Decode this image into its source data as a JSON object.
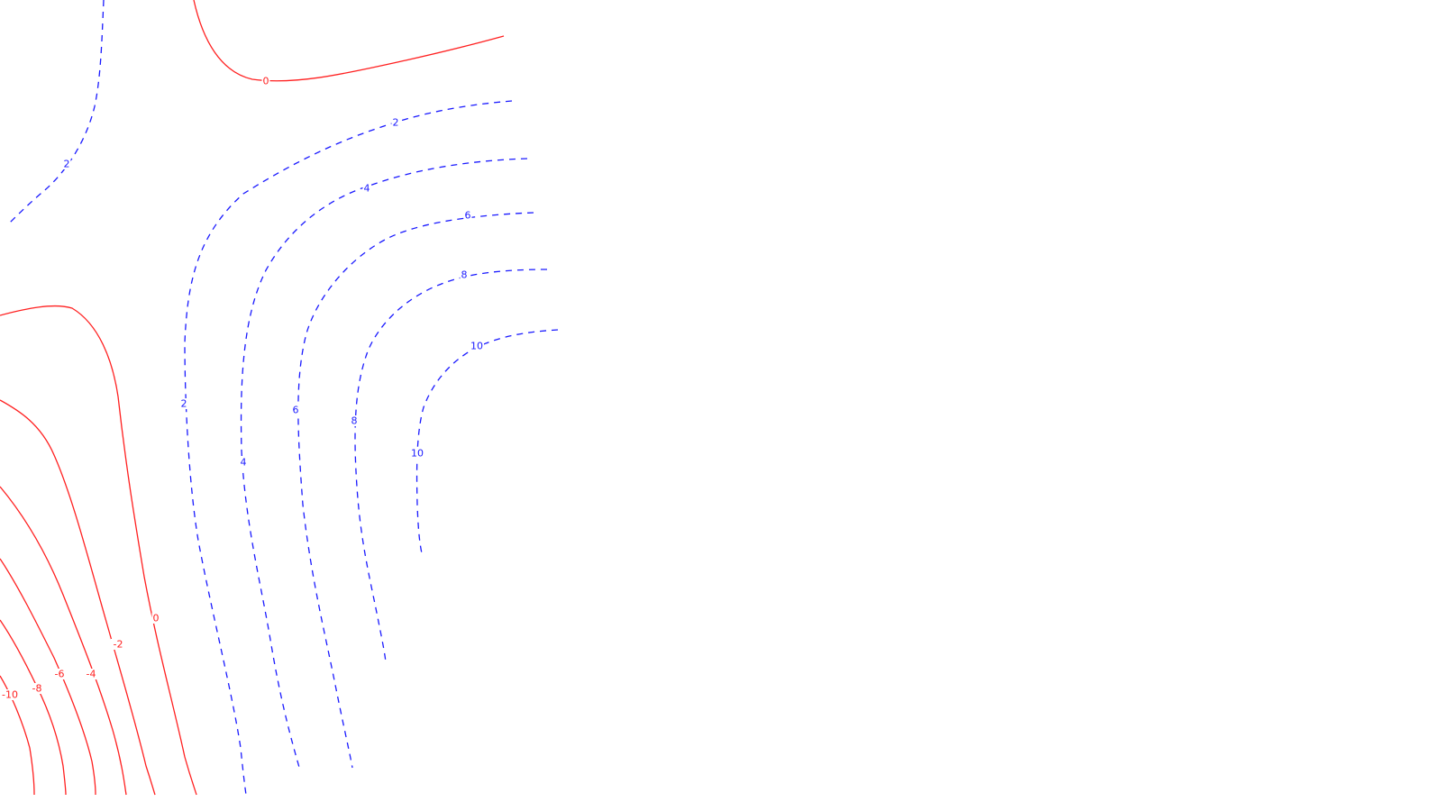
{
  "chart_data": {
    "type": "contour",
    "title": "",
    "xlabel": "",
    "ylabel": "",
    "grid": false,
    "legend": "none",
    "colors": {
      "positive": "#1a1aff",
      "zero_and_negative": "#ff2020"
    },
    "line_styles": {
      "positive": "dashed",
      "zero_and_negative": "solid"
    },
    "levels": [
      -10,
      -8,
      -6,
      -4,
      -2,
      0,
      2,
      4,
      6,
      8,
      10
    ],
    "labels": [
      {
        "id": "lbl-0-top",
        "text": "0",
        "level": 0
      },
      {
        "id": "lbl-2-topleft",
        "text": "2",
        "level": 2
      },
      {
        "id": "lbl-2-upper",
        "text": "2",
        "level": 2
      },
      {
        "id": "lbl-4-upper",
        "text": "4",
        "level": 4
      },
      {
        "id": "lbl-6-upper",
        "text": "6",
        "level": 6
      },
      {
        "id": "lbl-8-upper",
        "text": "8",
        "level": 8
      },
      {
        "id": "lbl-10-upper",
        "text": "10",
        "level": 10
      },
      {
        "id": "lbl-2-mid",
        "text": "2",
        "level": 2
      },
      {
        "id": "lbl-4-mid",
        "text": "4",
        "level": 4
      },
      {
        "id": "lbl-6-mid",
        "text": "6",
        "level": 6
      },
      {
        "id": "lbl-8-mid",
        "text": "8",
        "level": 8
      },
      {
        "id": "lbl-10-mid",
        "text": "10",
        "level": 10
      },
      {
        "id": "lbl-0-left",
        "text": "0",
        "level": 0
      },
      {
        "id": "lbl-neg2",
        "text": "-2",
        "level": -2
      },
      {
        "id": "lbl-neg4",
        "text": "-4",
        "level": -4
      },
      {
        "id": "lbl-neg6",
        "text": "-6",
        "level": -6
      },
      {
        "id": "lbl-neg8",
        "text": "-8",
        "level": -8
      },
      {
        "id": "lbl-neg10",
        "text": "-10",
        "level": -10
      }
    ]
  }
}
